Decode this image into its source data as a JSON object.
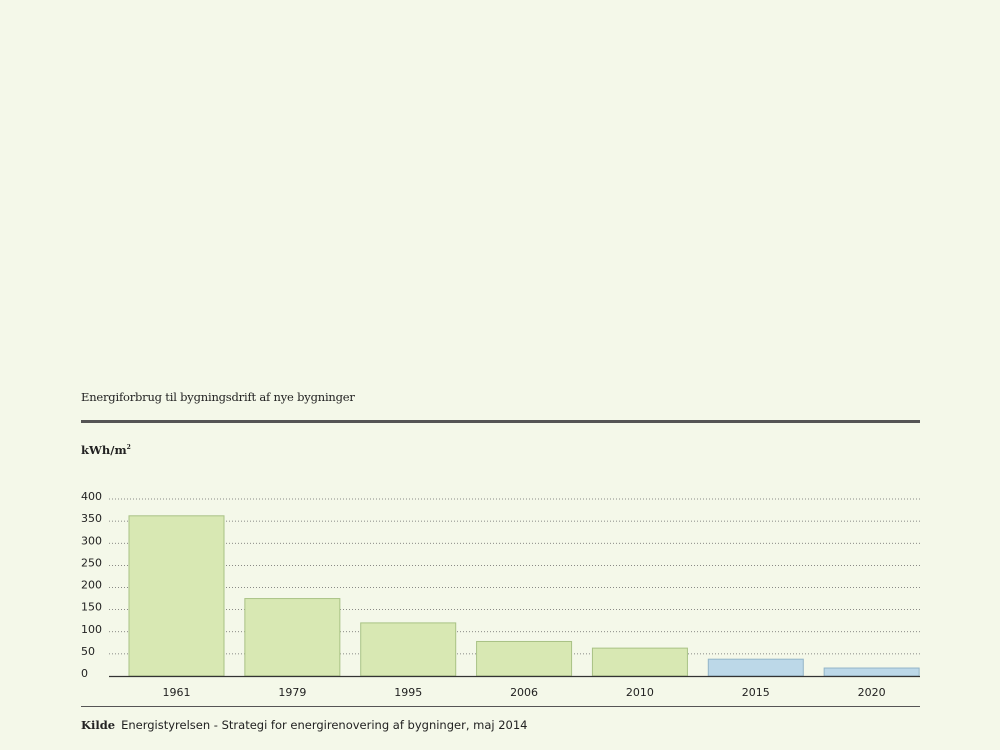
{
  "chart_data": {
    "type": "bar",
    "title": "Energiforbrug til bygningsdrift af nye bygninger",
    "ylabel": "kWh/m",
    "ylabel_sup": "2",
    "categories": [
      "1961",
      "1979",
      "1995",
      "2006",
      "2010",
      "2015",
      "2020"
    ],
    "values": [
      362,
      175,
      120,
      78,
      63,
      38,
      18
    ],
    "ylim": [
      0,
      400
    ],
    "yticks": [
      0,
      50,
      100,
      150,
      200,
      250,
      300,
      350,
      400
    ],
    "grid": true,
    "bar_colors": [
      "#d8e8b3",
      "#d8e8b3",
      "#d8e8b3",
      "#d8e8b3",
      "#d8e8b3",
      "#bcd8e8",
      "#bcd8e8"
    ],
    "bar_stroke_colors": [
      "#a9c285",
      "#a9c285",
      "#a9c285",
      "#a9c285",
      "#a9c285",
      "#93b5c8",
      "#93b5c8"
    ]
  },
  "source": {
    "label": "Kilde",
    "text": "Energistyrelsen - Strategi for energirenovering af bygninger, maj 2014"
  }
}
